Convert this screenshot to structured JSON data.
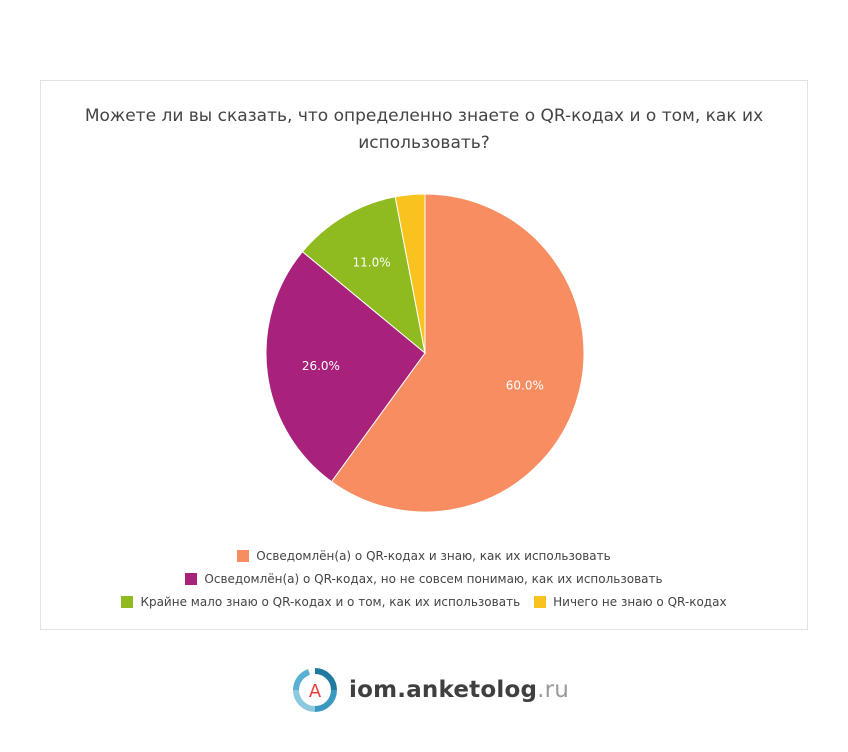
{
  "chart_data": {
    "type": "pie",
    "title": "Можете ли вы сказать, что определенно знаете о QR-кодах и о том, как их использовать?",
    "title_lines": [
      "Можете ли вы сказать, что определенно знаете о QR-кодах и о том, как их",
      "использовать?"
    ],
    "legend_position": "bottom",
    "slices": [
      {
        "label": "Осведомлён(а) о QR-кодах и знаю, как их использовать",
        "value": 60.0,
        "display": "60.0%",
        "color": "#f78d60"
      },
      {
        "label": "Осведомлён(а) о QR-кодах, но не совсем понимаю, как их использовать",
        "value": 26.0,
        "display": "26.0%",
        "color": "#a8217a"
      },
      {
        "label": "Крайне мало знаю о QR-кодах и о том, как их использовать",
        "value": 11.0,
        "display": "11.0%",
        "color": "#8fba20"
      },
      {
        "label": "Ничего не знаю о QR-кодах",
        "value": 3.0,
        "display": "",
        "color": "#f9c31f"
      }
    ]
  },
  "logo": {
    "name": "iom.anketolog",
    "suffix": ".ru",
    "mark": "A"
  }
}
